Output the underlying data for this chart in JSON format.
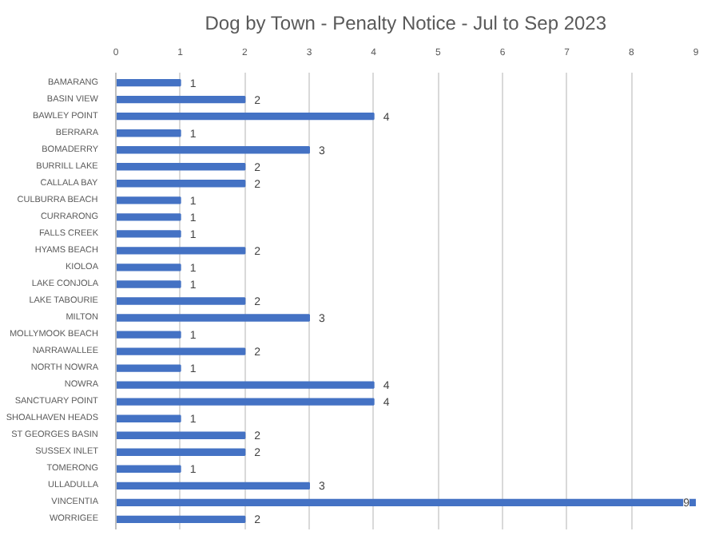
{
  "chart_data": {
    "type": "bar",
    "orientation": "horizontal",
    "title": "Dog by Town - Penalty Notice - Jul to Sep 2023",
    "categories": [
      "BAMARANG",
      "BASIN VIEW",
      "BAWLEY POINT",
      "BERRARA",
      "BOMADERRY",
      "BURRILL LAKE",
      "CALLALA BAY",
      "CULBURRA BEACH",
      "CURRARONG",
      "FALLS CREEK",
      "HYAMS BEACH",
      "KIOLOA",
      "LAKE CONJOLA",
      "LAKE TABOURIE",
      "MILTON",
      "MOLLYMOOK BEACH",
      "NARRAWALLEE",
      "NORTH NOWRA",
      "NOWRA",
      "SANCTUARY POINT",
      "SHOALHAVEN HEADS",
      "ST GEORGES BASIN",
      "SUSSEX INLET",
      "TOMERONG",
      "ULLADULLA",
      "VINCENTIA",
      "WORRIGEE"
    ],
    "values": [
      1,
      2,
      4,
      1,
      3,
      2,
      2,
      1,
      1,
      1,
      2,
      1,
      1,
      2,
      3,
      1,
      2,
      1,
      4,
      4,
      1,
      2,
      2,
      1,
      3,
      9,
      2
    ],
    "color": "#4472c4",
    "xlim": [
      0,
      9
    ],
    "xticks": [
      0,
      1,
      2,
      3,
      4,
      5,
      6,
      7,
      8,
      9
    ],
    "grid": "x",
    "data_labels": true
  }
}
